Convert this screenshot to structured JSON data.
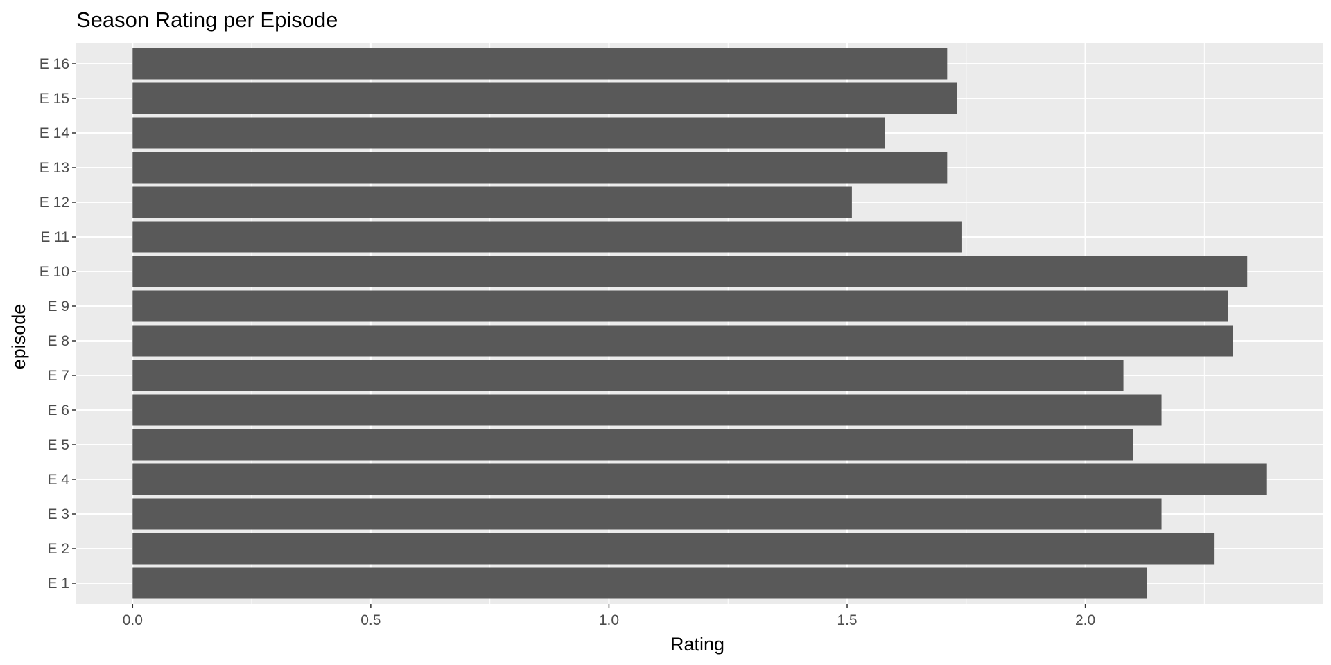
{
  "chart_data": {
    "type": "bar",
    "orientation": "horizontal",
    "title": "Season Rating per Episode",
    "xlabel": "Rating",
    "ylabel": "episode",
    "categories": [
      "E 1",
      "E 2",
      "E 3",
      "E 4",
      "E 5",
      "E 6",
      "E 7",
      "E 8",
      "E 9",
      "E 10",
      "E 11",
      "E 12",
      "E 13",
      "E 14",
      "E 15",
      "E 16"
    ],
    "values": [
      2.13,
      2.27,
      2.16,
      2.38,
      2.1,
      2.16,
      2.08,
      2.31,
      2.3,
      2.34,
      1.74,
      1.51,
      1.71,
      1.58,
      1.73,
      1.71
    ],
    "xticks": [
      "0.0",
      "0.5",
      "1.0",
      "1.5",
      "2.0"
    ],
    "xlim": [
      -0.1183,
      2.4983
    ],
    "grid": true,
    "colors": {
      "bar": "#595959",
      "panel": "#ebebeb",
      "grid": "#ffffff",
      "tick": "#4d4d4d"
    }
  }
}
